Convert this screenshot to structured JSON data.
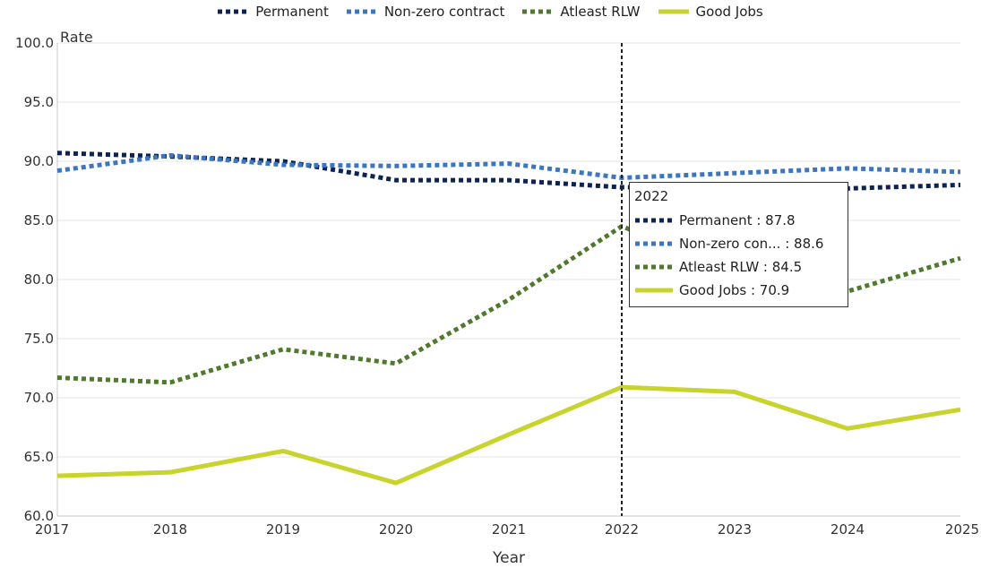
{
  "chart_data": {
    "type": "line",
    "ylabel": "Rate",
    "xlabel": "Year",
    "x": [
      "2017",
      "2018",
      "2019",
      "2020",
      "2021",
      "2022",
      "2023",
      "2024",
      "2025"
    ],
    "ylim": [
      60,
      100
    ],
    "yticks": [
      "60.0",
      "65.0",
      "70.0",
      "75.0",
      "80.0",
      "85.0",
      "90.0",
      "95.0",
      "100.0"
    ],
    "grid": "horizontal",
    "legend_position": "top-center",
    "series": [
      {
        "name": "Permanent",
        "color": "#0b2454",
        "style": "dotted",
        "values": [
          90.7,
          90.4,
          90.0,
          88.4,
          88.4,
          87.8,
          87.8,
          87.7,
          88.0
        ]
      },
      {
        "name": "Non-zero contract",
        "color": "#3a76c4",
        "style": "dotted",
        "values": [
          89.2,
          90.5,
          89.7,
          89.6,
          89.8,
          88.6,
          89.0,
          89.4,
          89.1
        ]
      },
      {
        "name": "Atleast RLW",
        "color": "#4f7a2b",
        "style": "dotted",
        "values": [
          71.7,
          71.3,
          74.1,
          72.9,
          78.3,
          84.5,
          80.8,
          79.0,
          81.8
        ]
      },
      {
        "name": "Good Jobs",
        "color": "#c8d32b",
        "style": "solid",
        "values": [
          63.4,
          63.7,
          65.5,
          62.8,
          66.9,
          70.9,
          70.5,
          67.4,
          69.0
        ]
      }
    ],
    "hover_line_x": "2022",
    "tooltip": {
      "title": "2022",
      "rows": [
        {
          "label": "Permanent : 87.8",
          "color": "#0b2454",
          "style": "dotted"
        },
        {
          "label": "Non-zero con... : 88.6",
          "color": "#3a76c4",
          "style": "dotted"
        },
        {
          "label": "Atleast RLW : 84.5",
          "color": "#4f7a2b",
          "style": "dotted"
        },
        {
          "label": "Good Jobs : 70.9",
          "color": "#c8d32b",
          "style": "solid"
        }
      ]
    }
  }
}
